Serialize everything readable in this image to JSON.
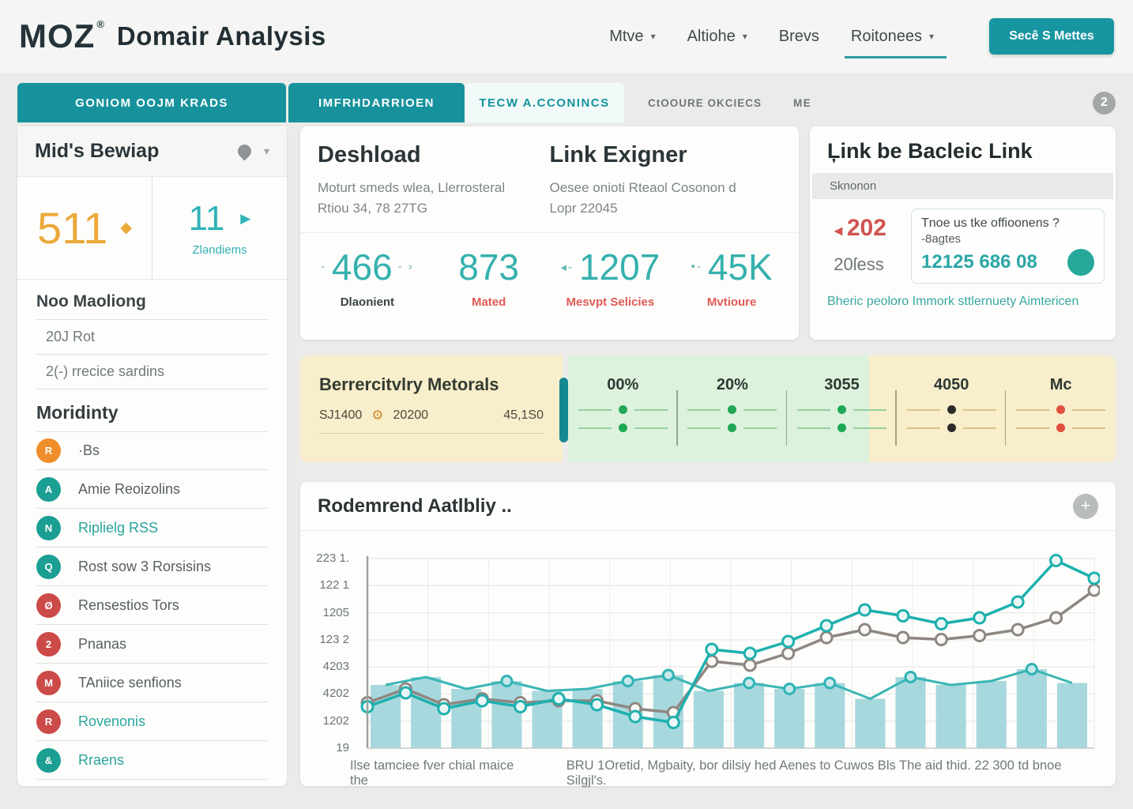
{
  "header": {
    "logo": "MOZ",
    "registered_mark": "®",
    "title": "Domair Analysis",
    "nav": [
      {
        "label": "Mtve"
      },
      {
        "label": "Altiohe"
      },
      {
        "label": "Brevs"
      },
      {
        "label": "Roitonees"
      }
    ],
    "cta_label": "Secê S Mettes"
  },
  "tabs": {
    "items": [
      {
        "label": "GONIOM OOJM KRADS"
      },
      {
        "label": "IMFRHDARRIOEN"
      },
      {
        "label": "TECW A.CCONINCS"
      },
      {
        "label": "CtOOURE OKCIECS"
      },
      {
        "label": "ME"
      }
    ],
    "badge": "2"
  },
  "sidebar": {
    "title": "Mid's Bewiap",
    "stats": {
      "primary_value": "511",
      "secondary_value": "11",
      "secondary_label": "Zləndiems"
    },
    "section_mailing": {
      "heading": "Noo Maoliong",
      "rows": [
        {
          "label": "20J Rot"
        },
        {
          "label": "2(-) rrecice sardins"
        }
      ]
    },
    "section_list_heading": "Moridinty",
    "items": [
      {
        "label": "·Bs",
        "icon": "R",
        "color": "#ef8e2a"
      },
      {
        "label": "Amie Reoizolins",
        "icon": "A",
        "color": "#1c9f93"
      },
      {
        "label": "Riplielg RSS",
        "icon": "N",
        "color": "#1c9f93"
      },
      {
        "label": "Rost sow 3 Rorsisins",
        "icon": "Q",
        "color": "#1c9f93"
      },
      {
        "label": "Rensestios Tors",
        "icon": "Ø",
        "color": "#cc4b48"
      },
      {
        "label": "Pnanas",
        "icon": "2",
        "color": "#cc4b48"
      },
      {
        "label": "TAniice senfions",
        "icon": "M",
        "color": "#cc4b48"
      },
      {
        "label": "Rovenonis",
        "icon": "R",
        "color": "#cc4b48"
      },
      {
        "label": "Rraens",
        "icon": "&",
        "color": "#1c9f93"
      }
    ]
  },
  "overview": {
    "left": {
      "title": "Deshload",
      "subtitle1": "Moturt smeds wlea, Llerrosteral",
      "subtitle2": "Rtiou 34, 78 27TG"
    },
    "right": {
      "title": "Link Exigner",
      "subtitle1": "Oesee onioti Rteaol Cosonon d",
      "subtitle2": "Lopr 22045"
    },
    "metrics": [
      {
        "prefix": "-",
        "value": "466",
        "suffix": "- ›",
        "label": "Dlaonient"
      },
      {
        "prefix": "",
        "value": "873",
        "suffix": "",
        "label": "Mated"
      },
      {
        "prefix": "◂-",
        "value": "1207",
        "suffix": "",
        "label": "Mesvpt Selicies"
      },
      {
        "prefix": "•-",
        "value": "45K",
        "suffix": "",
        "label": "Mvtioure"
      }
    ]
  },
  "link_panel": {
    "title": "Ļink be Bacleic Link",
    "band_label": "Sknonon",
    "stat": {
      "arrow": "◄",
      "value": "202",
      "sub": "20ſess"
    },
    "box": {
      "line1": "Tnoe us tke offioonens ?",
      "line2": "-8agtes",
      "line3": "12125 686 08"
    },
    "footer_link": "Bheric peoloro Immork sttlernuety Aimtericen"
  },
  "metrics_bar": {
    "title": "Berrercitvlry Metorals",
    "sub": {
      "item1": "SJ1400",
      "gear_icon": "⚙",
      "item2": "20200",
      "item3": "45,1S0"
    },
    "columns": [
      {
        "header": "00%",
        "dot_color": "#1fa855"
      },
      {
        "header": "20%",
        "dot_color": "#1fa855"
      },
      {
        "header": "3055",
        "dot_color": "#1fa855"
      },
      {
        "header": "4050",
        "dot_color": "#2b2b2b"
      },
      {
        "header": "Mc",
        "dot_color": "#e04f3f"
      }
    ]
  },
  "chart_panel": {
    "title": "Rodemrend Aatlbliy ..",
    "add_button": "+",
    "caption_left": "Ilse tamciee fver chial maice the",
    "caption_right": "BRU 1Oretid, Mgbaity, bor dilsiy hed Aenes to Cuwos Bls The aid thid. 22 300 td bnoe Silgjl's.",
    "chart_data": {
      "type": "combo",
      "title": "Rodemrend Aatlbliy ..",
      "y_tick_labels": [
        "223 1.",
        "122 1",
        "1205",
        "123 2",
        "4203",
        "4202",
        "1202",
        "19"
      ],
      "ylim": [
        0,
        100
      ],
      "grid": true,
      "series": [
        {
          "name": "trend-primary",
          "type": "line",
          "color": "#1db0ae",
          "values": [
            21,
            28,
            20,
            24,
            21,
            25,
            22,
            16,
            13,
            50,
            48,
            54,
            62,
            70,
            67,
            63,
            66,
            74,
            95,
            86
          ]
        },
        {
          "name": "trend-secondary",
          "type": "line",
          "color": "#8e8781",
          "values": [
            23,
            30,
            22,
            25,
            23,
            24,
            24,
            20,
            18,
            44,
            42,
            48,
            56,
            60,
            56,
            55,
            57,
            60,
            66,
            80
          ]
        },
        {
          "name": "volume-bars",
          "type": "bar",
          "color": "#a7d8de",
          "values": [
            32,
            36,
            30,
            34,
            29,
            30,
            34,
            37,
            29,
            33,
            30,
            33,
            25,
            36,
            32,
            34,
            40,
            33
          ],
          "marker_indices": [
            3,
            6,
            7,
            9,
            10,
            11,
            13,
            16
          ]
        }
      ]
    }
  }
}
